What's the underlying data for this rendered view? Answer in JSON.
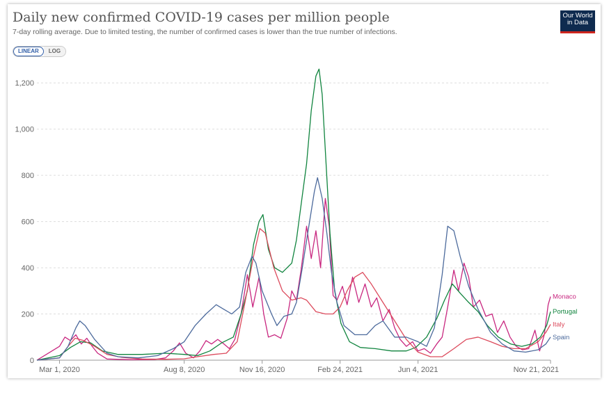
{
  "header": {
    "title": "Daily new confirmed COVID-19 cases per million people",
    "subtitle": "7-day rolling average. Due to limited testing, the number of confirmed cases is lower than the true number of infections."
  },
  "logo": {
    "line1": "Our World",
    "line2": "in Data",
    "bg_color": "#0f2b4f",
    "bar_color": "#ce261e"
  },
  "scale_toggle": {
    "linear_label": "LINEAR",
    "log_label": "LOG",
    "selected": "LINEAR"
  },
  "chart_data": {
    "type": "line",
    "title": "Daily new confirmed COVID-19 cases per million people",
    "xlabel": "",
    "ylabel": "",
    "x_range": [
      "2020-02-01",
      "2021-11-21"
    ],
    "ylim": [
      0,
      1300
    ],
    "y_ticks": [
      0,
      200,
      400,
      600,
      800,
      1000,
      1200
    ],
    "y_tick_labels": [
      "0",
      "200",
      "400",
      "600",
      "800",
      "1,000",
      "1,200"
    ],
    "x_ticks": [
      "2020-03-01",
      "2020-08-08",
      "2020-11-16",
      "2021-02-24",
      "2021-06-04",
      "2021-11-21"
    ],
    "x_tick_labels": [
      "Mar 1, 2020",
      "Aug 8, 2020",
      "Nov 16, 2020",
      "Feb 24, 2021",
      "Jun 4, 2021",
      "Nov 21, 2021"
    ],
    "grid": "horizontal dashed",
    "legend_placement": "right end labels",
    "series": [
      {
        "name": "Monaco",
        "color": "#c8267f",
        "points": [
          [
            "2020-02-01",
            0
          ],
          [
            "2020-03-01",
            60
          ],
          [
            "2020-03-08",
            100
          ],
          [
            "2020-03-15",
            85
          ],
          [
            "2020-03-22",
            110
          ],
          [
            "2020-03-29",
            70
          ],
          [
            "2020-04-05",
            95
          ],
          [
            "2020-04-12",
            60
          ],
          [
            "2020-04-19",
            30
          ],
          [
            "2020-05-01",
            5
          ],
          [
            "2020-06-01",
            2
          ],
          [
            "2020-07-01",
            3
          ],
          [
            "2020-07-15",
            10
          ],
          [
            "2020-07-25",
            40
          ],
          [
            "2020-08-02",
            75
          ],
          [
            "2020-08-10",
            30
          ],
          [
            "2020-08-20",
            10
          ],
          [
            "2020-08-28",
            40
          ],
          [
            "2020-09-05",
            85
          ],
          [
            "2020-09-12",
            70
          ],
          [
            "2020-09-20",
            90
          ],
          [
            "2020-09-28",
            70
          ],
          [
            "2020-10-05",
            50
          ],
          [
            "2020-10-12",
            90
          ],
          [
            "2020-10-20",
            200
          ],
          [
            "2020-10-28",
            370
          ],
          [
            "2020-11-04",
            230
          ],
          [
            "2020-11-12",
            360
          ],
          [
            "2020-11-18",
            200
          ],
          [
            "2020-11-24",
            100
          ],
          [
            "2020-12-02",
            110
          ],
          [
            "2020-12-10",
            95
          ],
          [
            "2020-12-18",
            180
          ],
          [
            "2020-12-24",
            300
          ],
          [
            "2020-12-30",
            260
          ],
          [
            "2021-01-05",
            390
          ],
          [
            "2021-01-12",
            580
          ],
          [
            "2021-01-18",
            440
          ],
          [
            "2021-01-24",
            560
          ],
          [
            "2021-01-30",
            400
          ],
          [
            "2021-02-05",
            700
          ],
          [
            "2021-02-10",
            580
          ],
          [
            "2021-02-15",
            280
          ],
          [
            "2021-02-20",
            260
          ],
          [
            "2021-02-27",
            320
          ],
          [
            "2021-03-05",
            240
          ],
          [
            "2021-03-12",
            360
          ],
          [
            "2021-03-20",
            250
          ],
          [
            "2021-03-28",
            330
          ],
          [
            "2021-04-05",
            230
          ],
          [
            "2021-04-12",
            270
          ],
          [
            "2021-04-20",
            170
          ],
          [
            "2021-04-28",
            220
          ],
          [
            "2021-05-05",
            140
          ],
          [
            "2021-05-12",
            90
          ],
          [
            "2021-05-20",
            60
          ],
          [
            "2021-05-28",
            80
          ],
          [
            "2021-06-04",
            40
          ],
          [
            "2021-06-12",
            50
          ],
          [
            "2021-06-20",
            30
          ],
          [
            "2021-06-28",
            70
          ],
          [
            "2021-07-05",
            100
          ],
          [
            "2021-07-12",
            230
          ],
          [
            "2021-07-20",
            390
          ],
          [
            "2021-07-26",
            300
          ],
          [
            "2021-08-02",
            420
          ],
          [
            "2021-08-08",
            360
          ],
          [
            "2021-08-14",
            230
          ],
          [
            "2021-08-22",
            260
          ],
          [
            "2021-08-30",
            190
          ],
          [
            "2021-09-07",
            200
          ],
          [
            "2021-09-14",
            120
          ],
          [
            "2021-09-22",
            170
          ],
          [
            "2021-09-30",
            100
          ],
          [
            "2021-10-08",
            60
          ],
          [
            "2021-10-16",
            45
          ],
          [
            "2021-10-24",
            50
          ],
          [
            "2021-11-01",
            130
          ],
          [
            "2021-11-07",
            40
          ],
          [
            "2021-11-13",
            110
          ],
          [
            "2021-11-18",
            240
          ],
          [
            "2021-11-21",
            275
          ]
        ]
      },
      {
        "name": "Portugal",
        "color": "#10843e",
        "points": [
          [
            "2020-02-01",
            0
          ],
          [
            "2020-03-01",
            20
          ],
          [
            "2020-03-15",
            55
          ],
          [
            "2020-03-28",
            80
          ],
          [
            "2020-04-10",
            75
          ],
          [
            "2020-04-25",
            40
          ],
          [
            "2020-05-15",
            25
          ],
          [
            "2020-06-15",
            25
          ],
          [
            "2020-07-15",
            30
          ],
          [
            "2020-08-08",
            25
          ],
          [
            "2020-08-25",
            20
          ],
          [
            "2020-09-10",
            40
          ],
          [
            "2020-09-25",
            75
          ],
          [
            "2020-10-10",
            100
          ],
          [
            "2020-10-20",
            200
          ],
          [
            "2020-10-28",
            300
          ],
          [
            "2020-11-05",
            500
          ],
          [
            "2020-11-12",
            600
          ],
          [
            "2020-11-17",
            630
          ],
          [
            "2020-11-24",
            480
          ],
          [
            "2020-12-02",
            400
          ],
          [
            "2020-12-12",
            380
          ],
          [
            "2020-12-24",
            420
          ],
          [
            "2020-12-30",
            520
          ],
          [
            "2021-01-06",
            700
          ],
          [
            "2021-01-12",
            850
          ],
          [
            "2021-01-18",
            1080
          ],
          [
            "2021-01-24",
            1230
          ],
          [
            "2021-01-28",
            1260
          ],
          [
            "2021-02-01",
            1150
          ],
          [
            "2021-02-06",
            850
          ],
          [
            "2021-02-11",
            550
          ],
          [
            "2021-02-17",
            300
          ],
          [
            "2021-02-25",
            160
          ],
          [
            "2021-03-08",
            80
          ],
          [
            "2021-03-22",
            55
          ],
          [
            "2021-04-10",
            50
          ],
          [
            "2021-05-01",
            40
          ],
          [
            "2021-05-20",
            40
          ],
          [
            "2021-06-01",
            55
          ],
          [
            "2021-06-15",
            100
          ],
          [
            "2021-06-28",
            180
          ],
          [
            "2021-07-08",
            260
          ],
          [
            "2021-07-18",
            330
          ],
          [
            "2021-07-28",
            290
          ],
          [
            "2021-08-08",
            250
          ],
          [
            "2021-08-20",
            210
          ],
          [
            "2021-09-01",
            150
          ],
          [
            "2021-09-15",
            100
          ],
          [
            "2021-10-01",
            70
          ],
          [
            "2021-10-15",
            60
          ],
          [
            "2021-10-28",
            70
          ],
          [
            "2021-11-08",
            100
          ],
          [
            "2021-11-16",
            150
          ],
          [
            "2021-11-21",
            210
          ]
        ]
      },
      {
        "name": "Italy",
        "color": "#dc4a5c",
        "points": [
          [
            "2020-02-01",
            0
          ],
          [
            "2020-03-01",
            10
          ],
          [
            "2020-03-12",
            60
          ],
          [
            "2020-03-21",
            95
          ],
          [
            "2020-04-01",
            85
          ],
          [
            "2020-04-15",
            60
          ],
          [
            "2020-05-01",
            25
          ],
          [
            "2020-05-20",
            12
          ],
          [
            "2020-06-15",
            5
          ],
          [
            "2020-07-15",
            4
          ],
          [
            "2020-08-08",
            6
          ],
          [
            "2020-08-25",
            15
          ],
          [
            "2020-09-15",
            25
          ],
          [
            "2020-10-01",
            30
          ],
          [
            "2020-10-15",
            80
          ],
          [
            "2020-10-25",
            250
          ],
          [
            "2020-11-05",
            450
          ],
          [
            "2020-11-13",
            570
          ],
          [
            "2020-11-20",
            550
          ],
          [
            "2020-12-01",
            400
          ],
          [
            "2020-12-12",
            300
          ],
          [
            "2020-12-24",
            260
          ],
          [
            "2021-01-05",
            270
          ],
          [
            "2021-01-12",
            260
          ],
          [
            "2021-01-24",
            210
          ],
          [
            "2021-02-05",
            200
          ],
          [
            "2021-02-15",
            200
          ],
          [
            "2021-02-24",
            230
          ],
          [
            "2021-03-05",
            300
          ],
          [
            "2021-03-15",
            360
          ],
          [
            "2021-03-25",
            380
          ],
          [
            "2021-04-05",
            330
          ],
          [
            "2021-04-20",
            250
          ],
          [
            "2021-05-05",
            170
          ],
          [
            "2021-05-20",
            90
          ],
          [
            "2021-06-04",
            35
          ],
          [
            "2021-06-20",
            15
          ],
          [
            "2021-07-05",
            15
          ],
          [
            "2021-07-20",
            50
          ],
          [
            "2021-08-05",
            90
          ],
          [
            "2021-08-20",
            100
          ],
          [
            "2021-09-05",
            80
          ],
          [
            "2021-09-20",
            60
          ],
          [
            "2021-10-05",
            50
          ],
          [
            "2021-10-20",
            50
          ],
          [
            "2021-11-05",
            80
          ],
          [
            "2021-11-15",
            120
          ],
          [
            "2021-11-21",
            155
          ]
        ]
      },
      {
        "name": "Spain",
        "color": "#4c6a9c",
        "points": [
          [
            "2020-02-01",
            0
          ],
          [
            "2020-03-01",
            10
          ],
          [
            "2020-03-12",
            60
          ],
          [
            "2020-03-22",
            140
          ],
          [
            "2020-03-27",
            170
          ],
          [
            "2020-04-03",
            150
          ],
          [
            "2020-04-15",
            90
          ],
          [
            "2020-05-01",
            30
          ],
          [
            "2020-05-15",
            15
          ],
          [
            "2020-06-10",
            10
          ],
          [
            "2020-07-05",
            20
          ],
          [
            "2020-07-25",
            50
          ],
          [
            "2020-08-08",
            80
          ],
          [
            "2020-08-22",
            150
          ],
          [
            "2020-09-05",
            200
          ],
          [
            "2020-09-18",
            240
          ],
          [
            "2020-09-28",
            220
          ],
          [
            "2020-10-08",
            200
          ],
          [
            "2020-10-18",
            230
          ],
          [
            "2020-10-26",
            380
          ],
          [
            "2020-11-03",
            450
          ],
          [
            "2020-11-08",
            420
          ],
          [
            "2020-11-16",
            300
          ],
          [
            "2020-11-28",
            200
          ],
          [
            "2020-12-05",
            150
          ],
          [
            "2020-12-14",
            190
          ],
          [
            "2020-12-24",
            200
          ],
          [
            "2020-12-30",
            250
          ],
          [
            "2021-01-06",
            390
          ],
          [
            "2021-01-14",
            560
          ],
          [
            "2021-01-22",
            730
          ],
          [
            "2021-01-26",
            790
          ],
          [
            "2021-02-01",
            700
          ],
          [
            "2021-02-07",
            550
          ],
          [
            "2021-02-13",
            380
          ],
          [
            "2021-02-20",
            250
          ],
          [
            "2021-03-01",
            150
          ],
          [
            "2021-03-15",
            110
          ],
          [
            "2021-03-30",
            110
          ],
          [
            "2021-04-10",
            150
          ],
          [
            "2021-04-20",
            170
          ],
          [
            "2021-05-05",
            100
          ],
          [
            "2021-05-20",
            100
          ],
          [
            "2021-06-04",
            80
          ],
          [
            "2021-06-15",
            60
          ],
          [
            "2021-06-25",
            140
          ],
          [
            "2021-07-05",
            370
          ],
          [
            "2021-07-12",
            580
          ],
          [
            "2021-07-20",
            560
          ],
          [
            "2021-07-28",
            450
          ],
          [
            "2021-08-08",
            320
          ],
          [
            "2021-08-20",
            220
          ],
          [
            "2021-09-05",
            120
          ],
          [
            "2021-09-20",
            70
          ],
          [
            "2021-10-05",
            40
          ],
          [
            "2021-10-20",
            35
          ],
          [
            "2021-11-05",
            45
          ],
          [
            "2021-11-15",
            70
          ],
          [
            "2021-11-21",
            100
          ]
        ]
      }
    ]
  }
}
